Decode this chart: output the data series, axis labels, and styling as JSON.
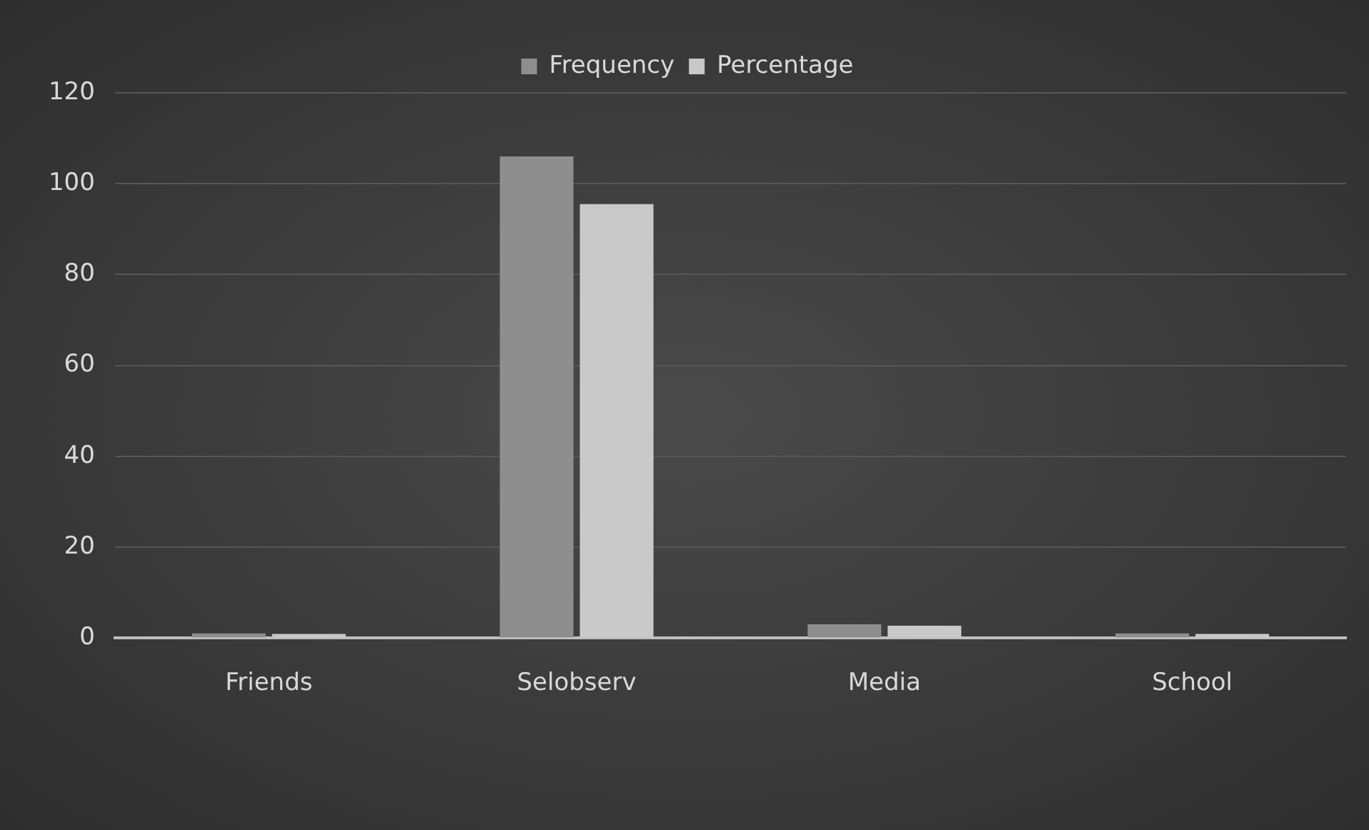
{
  "chart_data": {
    "type": "bar",
    "categories": [
      "Friends",
      "Selobserv",
      "Media",
      "School"
    ],
    "series": [
      {
        "name": "Frequency",
        "color": "#8e8e8e",
        "values": [
          1,
          106,
          3,
          1
        ]
      },
      {
        "name": "Percentage",
        "color": "#c9c9c9",
        "values": [
          0.9,
          95.5,
          2.7,
          0.9
        ]
      }
    ],
    "ylim": [
      0,
      120
    ],
    "yticks": [
      0,
      20,
      40,
      60,
      80,
      100,
      120
    ],
    "grid": "y",
    "legend": "top"
  }
}
